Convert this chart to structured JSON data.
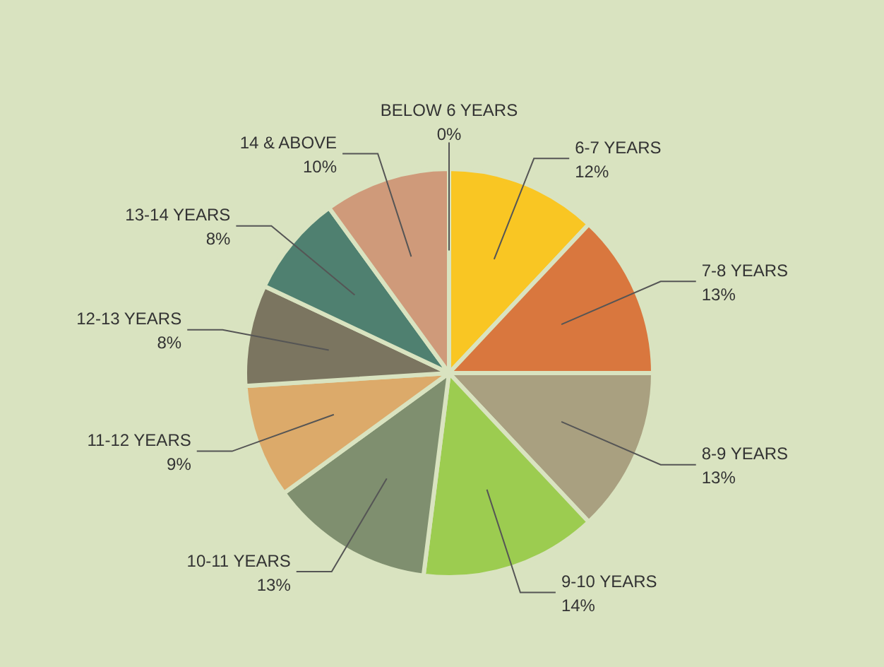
{
  "chart_data": {
    "type": "pie",
    "categories": [
      "BELOW 6 YEARS",
      "6-7 YEARS",
      "7-8 YEARS",
      "8-9 YEARS",
      "9-10 YEARS",
      "10-11 YEARS",
      "11-12 YEARS",
      "12-13 YEARS",
      "13-14 YEARS",
      "14 & ABOVE"
    ],
    "values": [
      0,
      12,
      13,
      13,
      14,
      13,
      9,
      8,
      8,
      10
    ],
    "value_labels": [
      "0%",
      "12%",
      "13%",
      "13%",
      "14%",
      "13%",
      "9%",
      "8%",
      "8%",
      "10%"
    ],
    "colors": [
      "#1f4e5f",
      "#f9c623",
      "#d9773e",
      "#a9a080",
      "#9ccc50",
      "#7f8f6f",
      "#dcaa6a",
      "#7b7560",
      "#4f8070",
      "#cf9a7a"
    ],
    "legend": false
  }
}
